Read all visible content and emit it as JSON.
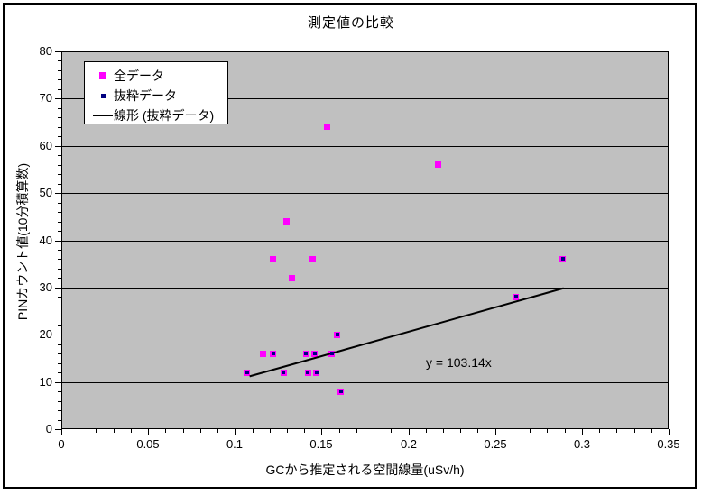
{
  "chart_data": {
    "type": "scatter",
    "title": "測定値の比較",
    "xlabel": "GCから推定される空間線量(uSv/h)",
    "ylabel": "PINカウント値(10分積算数)",
    "xlim": [
      0,
      0.35
    ],
    "ylim": [
      0,
      80
    ],
    "x_ticks": [
      {
        "v": 0,
        "label": "0"
      },
      {
        "v": 0.05,
        "label": "0.05"
      },
      {
        "v": 0.1,
        "label": "0.1"
      },
      {
        "v": 0.15,
        "label": "0.15"
      },
      {
        "v": 0.2,
        "label": "0.2"
      },
      {
        "v": 0.25,
        "label": "0.25"
      },
      {
        "v": 0.3,
        "label": "0.3"
      },
      {
        "v": 0.35,
        "label": "0.35"
      }
    ],
    "y_ticks": [
      {
        "v": 0,
        "label": "0"
      },
      {
        "v": 10,
        "label": "10"
      },
      {
        "v": 20,
        "label": "20"
      },
      {
        "v": 30,
        "label": "30"
      },
      {
        "v": 40,
        "label": "40"
      },
      {
        "v": 50,
        "label": "50"
      },
      {
        "v": 60,
        "label": "60"
      },
      {
        "v": 70,
        "label": "70"
      },
      {
        "v": 80,
        "label": "80"
      }
    ],
    "x_minor_step": 0.01,
    "y_minor_step": 2,
    "grid": "horizontal-major-only",
    "plot_bg_color": "#C0C0C0",
    "legend_position": "top-left-inside",
    "series": [
      {
        "name": "全データ",
        "marker": "square",
        "color": "#FF00FF",
        "marker_size": 7,
        "points": [
          [
            0.107,
            12
          ],
          [
            0.116,
            16
          ],
          [
            0.122,
            16
          ],
          [
            0.122,
            36
          ],
          [
            0.128,
            12
          ],
          [
            0.13,
            44
          ],
          [
            0.133,
            32
          ],
          [
            0.141,
            16
          ],
          [
            0.142,
            12
          ],
          [
            0.145,
            36
          ],
          [
            0.146,
            16
          ],
          [
            0.147,
            12
          ],
          [
            0.153,
            64
          ],
          [
            0.156,
            16
          ],
          [
            0.159,
            20
          ],
          [
            0.161,
            8
          ],
          [
            0.217,
            56
          ],
          [
            0.262,
            28
          ],
          [
            0.289,
            36
          ]
        ]
      },
      {
        "name": "抜粋データ",
        "marker": "square",
        "color": "#000080",
        "marker_size": 4,
        "points": [
          [
            0.107,
            12
          ],
          [
            0.122,
            16
          ],
          [
            0.128,
            12
          ],
          [
            0.141,
            16
          ],
          [
            0.142,
            12
          ],
          [
            0.146,
            16
          ],
          [
            0.147,
            12
          ],
          [
            0.156,
            16
          ],
          [
            0.159,
            20
          ],
          [
            0.161,
            8
          ],
          [
            0.262,
            28
          ],
          [
            0.289,
            36
          ]
        ]
      }
    ],
    "trendline": {
      "name": "線形 (抜粋データ)",
      "color": "#000000",
      "slope": 103.14,
      "x_start": 0.1085,
      "x_end": 0.2895,
      "annotation": "y = 103.14x"
    }
  }
}
